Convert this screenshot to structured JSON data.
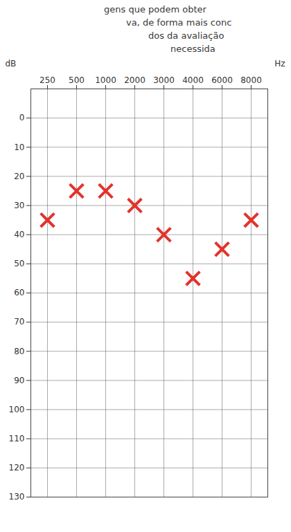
{
  "chart_data": {
    "type": "scatter",
    "annotations": [
      "gens que podem obter",
      "va, de forma mais conc",
      "dos da avaliação",
      "necessida"
    ],
    "xlabel": "Hz",
    "ylabel": "dB",
    "categories": [
      "250",
      "500",
      "1000",
      "2000",
      "3000",
      "4000",
      "6000",
      "8000"
    ],
    "values": [
      35,
      25,
      25,
      30,
      40,
      55,
      45,
      35
    ],
    "color": "#e2332b",
    "marker": "x",
    "ylim": [
      -10,
      130
    ],
    "yticks": [
      0,
      10,
      20,
      30,
      40,
      50,
      60,
      70,
      80,
      90,
      100,
      110,
      120,
      130
    ],
    "grid": true
  }
}
